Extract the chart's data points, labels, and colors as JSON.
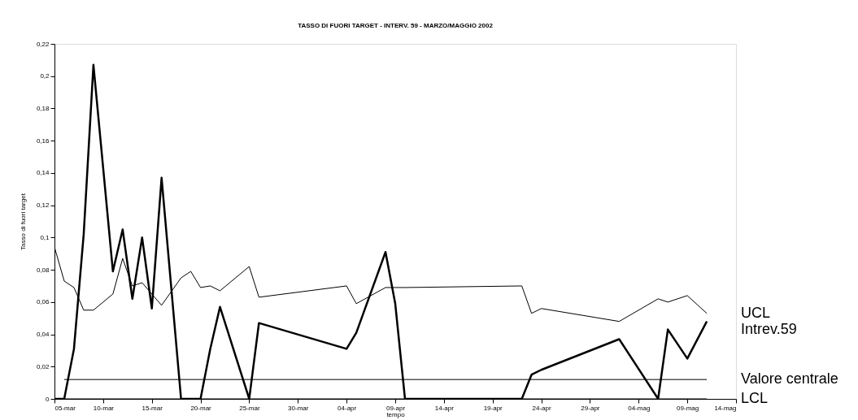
{
  "chart_data": {
    "type": "line",
    "title": "TASSO DI FUORI TARGET - INTERV. 59 - MARZO/MAGGIO 2002",
    "xlabel": "tempo",
    "ylabel": "Tasso di fuori target",
    "series": [
      {
        "name": "UCL",
        "color": "#000000",
        "x": [
          "2002-03-05",
          "2002-03-06",
          "2002-03-07",
          "2002-03-08",
          "2002-03-09",
          "2002-03-11",
          "2002-03-12",
          "2002-03-13",
          "2002-03-14",
          "2002-03-16",
          "2002-03-18",
          "2002-03-19",
          "2002-03-20",
          "2002-03-21",
          "2002-03-22",
          "2002-03-25",
          "2002-03-26",
          "2002-04-04",
          "2002-04-05",
          "2002-04-08",
          "2002-04-09",
          "2002-04-10",
          "2002-04-22",
          "2002-04-23",
          "2002-04-24",
          "2002-05-02",
          "2002-05-06",
          "2002-05-07",
          "2002-05-09",
          "2002-05-11"
        ],
        "values": [
          0.094,
          0.073,
          0.069,
          0.055,
          0.055,
          0.065,
          0.087,
          0.07,
          0.072,
          0.058,
          0.075,
          0.079,
          0.069,
          0.07,
          0.067,
          0.082,
          0.063,
          0.07,
          0.059,
          0.069,
          0.069,
          0.069,
          0.07,
          0.053,
          0.056,
          0.048,
          0.062,
          0.06,
          0.064,
          0.053
        ]
      },
      {
        "name": "Intrev.59",
        "color": "#000000",
        "x": [
          "2002-03-05",
          "2002-03-06",
          "2002-03-07",
          "2002-03-08",
          "2002-03-09",
          "2002-03-11",
          "2002-03-12",
          "2002-03-13",
          "2002-03-14",
          "2002-03-15",
          "2002-03-16",
          "2002-03-18",
          "2002-03-20",
          "2002-03-21",
          "2002-03-22",
          "2002-03-25",
          "2002-03-26",
          "2002-04-04",
          "2002-04-05",
          "2002-04-08",
          "2002-04-09",
          "2002-04-10",
          "2002-04-22",
          "2002-04-23",
          "2002-04-24",
          "2002-05-02",
          "2002-05-06",
          "2002-05-07",
          "2002-05-09",
          "2002-05-11"
        ],
        "values": [
          0,
          0,
          0.031,
          0.102,
          0.207,
          0.079,
          0.105,
          0.062,
          0.1,
          0.056,
          0.137,
          0,
          0,
          0.031,
          0.057,
          0,
          0.047,
          0.031,
          0.041,
          0.091,
          0.059,
          0,
          0,
          0.015,
          0.018,
          0.037,
          0,
          0.043,
          0.025,
          0.048
        ]
      },
      {
        "name": "Valore centrale",
        "color": "#000000",
        "x": [
          "2002-03-06",
          "2002-05-11"
        ],
        "values": [
          0.012,
          0.012
        ]
      },
      {
        "name": "LCL",
        "color": "#000000",
        "x": [
          "2002-03-05",
          "2002-05-11"
        ],
        "values": [
          0,
          0
        ]
      }
    ],
    "xlim": [
      "2002-03-05",
      "2002-05-14"
    ],
    "xticks": [
      {
        "value": "2002-03-05",
        "label": "05-mar"
      },
      {
        "value": "2002-03-10",
        "label": "10-mar"
      },
      {
        "value": "2002-03-15",
        "label": "15-mar"
      },
      {
        "value": "2002-03-20",
        "label": "20-mar"
      },
      {
        "value": "2002-03-25",
        "label": "25-mar"
      },
      {
        "value": "2002-03-30",
        "label": "30-mar"
      },
      {
        "value": "2002-04-04",
        "label": "04-apr"
      },
      {
        "value": "2002-04-09",
        "label": "09-apr"
      },
      {
        "value": "2002-04-14",
        "label": "14-apr"
      },
      {
        "value": "2002-04-19",
        "label": "19-apr"
      },
      {
        "value": "2002-04-24",
        "label": "24-apr"
      },
      {
        "value": "2002-04-29",
        "label": "29-apr"
      },
      {
        "value": "2002-05-04",
        "label": "04-mag"
      },
      {
        "value": "2002-05-09",
        "label": "09-mag"
      },
      {
        "value": "2002-05-14",
        "label": "14-mag"
      }
    ],
    "ylim": [
      0,
      0.22
    ],
    "yticks": [
      0,
      {
        "value": 0.02,
        "label": "0,02"
      },
      {
        "value": 0.04,
        "label": "0,04"
      },
      {
        "value": 0.06,
        "label": "0,06"
      },
      {
        "value": 0.08,
        "label": "0,08"
      },
      {
        "value": 0.1,
        "label": "0,1"
      },
      {
        "value": 0.12,
        "label": "0,12"
      },
      {
        "value": 0.14,
        "label": "0,14"
      },
      {
        "value": 0.16,
        "label": "0,16"
      },
      {
        "value": 0.18,
        "label": "0,18"
      },
      {
        "value": 0.2,
        "label": "0,2"
      },
      {
        "value": 0.22,
        "label": "0,22"
      }
    ],
    "grid": false,
    "legend": "right",
    "line_style": "solid"
  }
}
